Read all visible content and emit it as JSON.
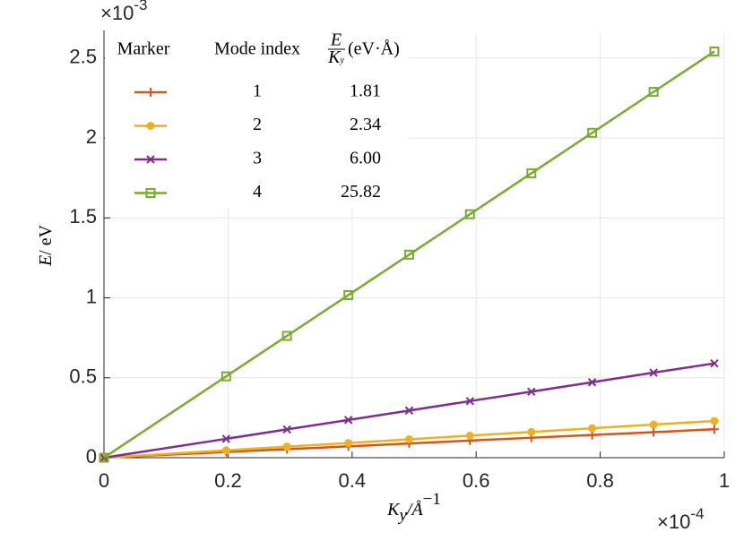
{
  "chart_data": {
    "type": "line",
    "x": [
      0,
      0.197,
      0.295,
      0.394,
      0.492,
      0.59,
      0.689,
      0.787,
      0.886,
      0.984
    ],
    "series": [
      {
        "name": "1",
        "color": "#d95319",
        "marker": "plus",
        "values": [
          0,
          0.036,
          0.053,
          0.071,
          0.089,
          0.107,
          0.125,
          0.142,
          0.16,
          0.178
        ]
      },
      {
        "name": "2",
        "color": "#edb120",
        "marker": "circle",
        "values": [
          0,
          0.046,
          0.069,
          0.092,
          0.115,
          0.138,
          0.161,
          0.184,
          0.207,
          0.23
        ]
      },
      {
        "name": "3",
        "color": "#7e2f8e",
        "marker": "cross",
        "values": [
          0,
          0.118,
          0.177,
          0.236,
          0.295,
          0.354,
          0.413,
          0.472,
          0.532,
          0.59
        ]
      },
      {
        "name": "4",
        "color": "#77ac30",
        "marker": "square",
        "values": [
          0,
          0.509,
          0.762,
          1.017,
          1.27,
          1.523,
          1.779,
          2.032,
          2.288,
          2.541
        ]
      }
    ],
    "legend": {
      "headers": [
        "Marker",
        "Mode index"
      ],
      "ratio_header": {
        "numerator": "E",
        "denominator": "K",
        "denominator_sub": "y",
        "unit": "(eV·Å)"
      },
      "values": [
        "1.81",
        "2.34",
        "6.00",
        "25.82"
      ]
    },
    "xlabel": {
      "symbol": "K",
      "sub": "y",
      "slash": "/",
      "unit": "Å",
      "exp": "−1"
    },
    "ylabel": {
      "symbol": "E",
      "unit": "/ eV"
    },
    "x_multiplier": {
      "base": "×10",
      "exp": "-4"
    },
    "y_multiplier": {
      "base": "×10",
      "exp": "-3"
    },
    "xlim": [
      0,
      1
    ],
    "ylim": [
      0,
      2.65
    ],
    "xticks": [
      0,
      0.2,
      0.4,
      0.6,
      0.8,
      1
    ],
    "yticks": [
      0,
      0.5,
      1,
      1.5,
      2,
      2.5
    ],
    "grid": true
  }
}
